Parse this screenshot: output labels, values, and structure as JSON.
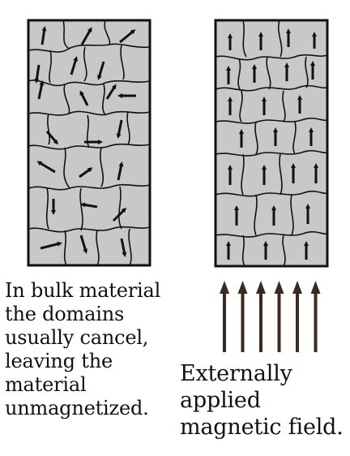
{
  "left_caption": "In bulk material\nthe domains\nusually cancel,\nleaving the\nmaterial\nunmagnetized.",
  "right_caption": "Externally\napplied\nmagnetic field.",
  "colors": {
    "domain_fill": "#c8c8c8",
    "domain_border": "#111111",
    "field_arrow": "#3a2a22",
    "text": "#111111"
  },
  "icons": {
    "domain_arrow": "arrow-glyph",
    "field_arrow": "long-up-arrow"
  },
  "left_block": {
    "state": "random domain orientations",
    "arrow_directions_deg": [
      80,
      60,
      35,
      100,
      70,
      110,
      180,
      70,
      110,
      50,
      20,
      100,
      0,
      180,
      30,
      340,
      90,
      80,
      70,
      10,
      90,
      340,
      240,
      30,
      330,
      20
    ]
  },
  "right_block": {
    "state": "aligned domains",
    "arrow_directions_deg": [
      90,
      90,
      90,
      90,
      90,
      90,
      90,
      90,
      90,
      90,
      90,
      90,
      90,
      90,
      90,
      90,
      90,
      90,
      90,
      90,
      90,
      90,
      90,
      90,
      90,
      90,
      90,
      90,
      90
    ]
  },
  "field_arrows": {
    "count": 6,
    "direction": "up"
  }
}
